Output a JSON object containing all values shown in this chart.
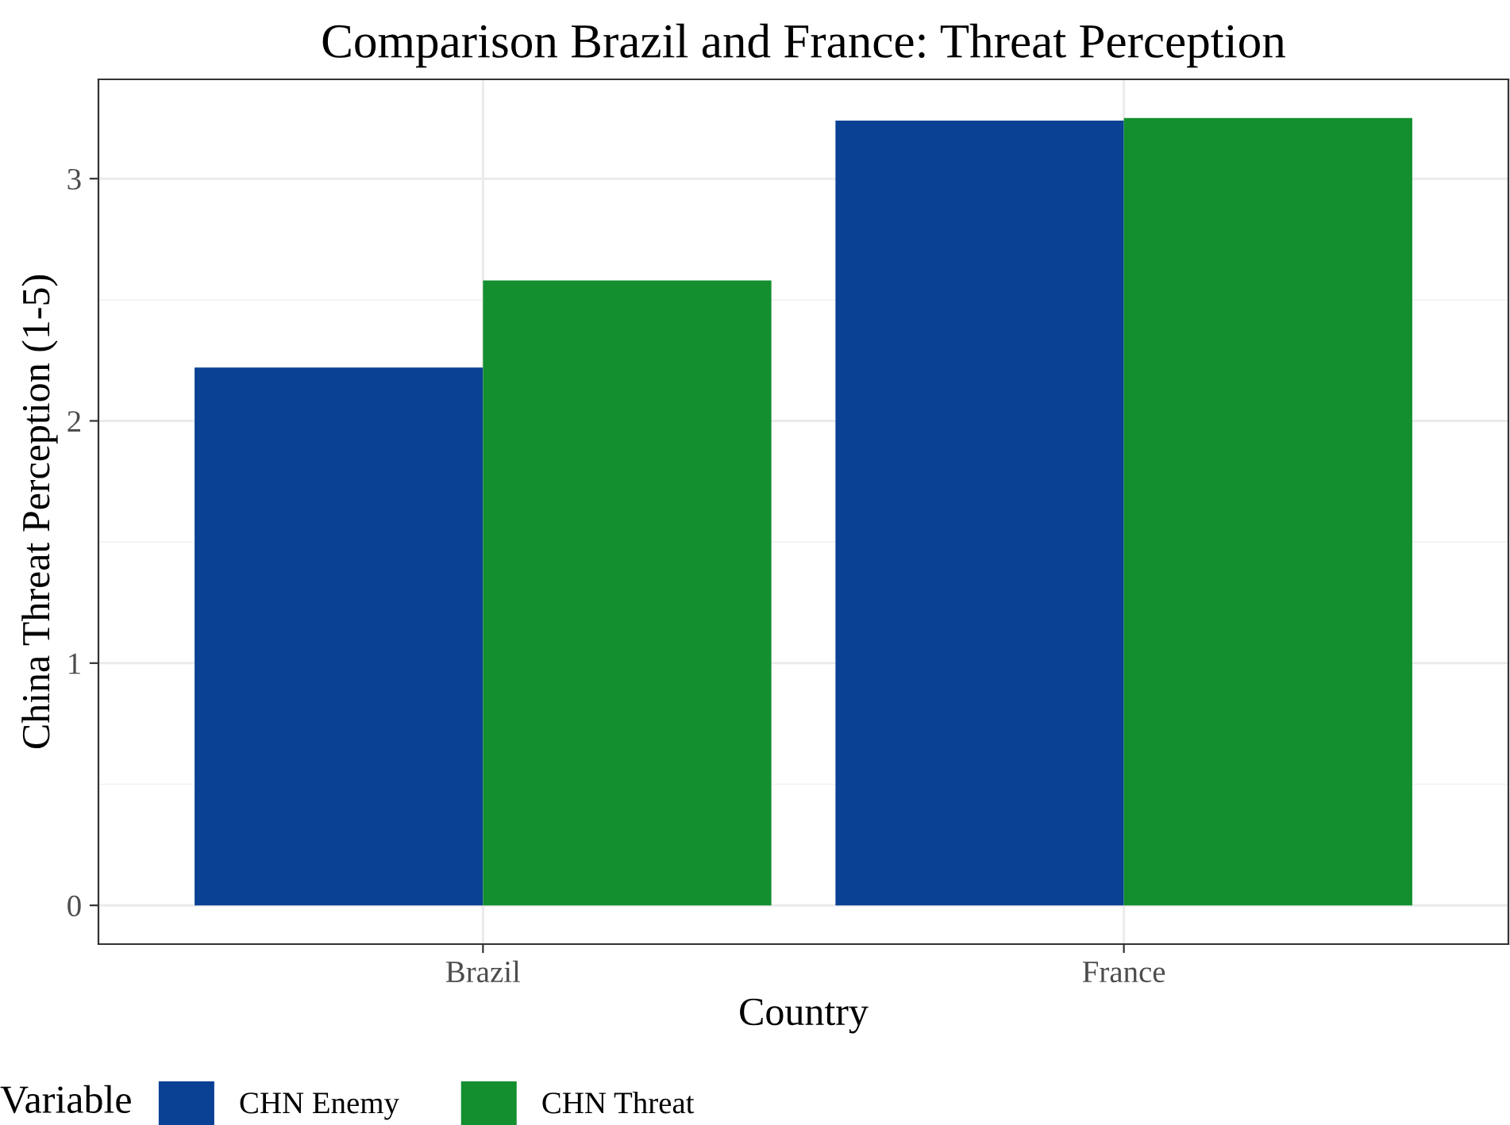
{
  "chart_data": {
    "type": "bar",
    "title": "Comparison Brazil and France: Threat Perception",
    "xlabel": "Country",
    "ylabel": "China Threat Perception (1-5)",
    "legend_title": "Variable",
    "categories": [
      "Brazil",
      "France"
    ],
    "series": [
      {
        "name": "CHN Enemy",
        "color": "#0a4194",
        "values": [
          2.22,
          3.24
        ]
      },
      {
        "name": "CHN Threat",
        "color": "#138f2f",
        "values": [
          2.58,
          3.25
        ]
      }
    ],
    "ylim": [
      -0.16,
      3.41
    ],
    "yticks": [
      0,
      1,
      2,
      3
    ],
    "grid": true,
    "legend": "bottom"
  }
}
